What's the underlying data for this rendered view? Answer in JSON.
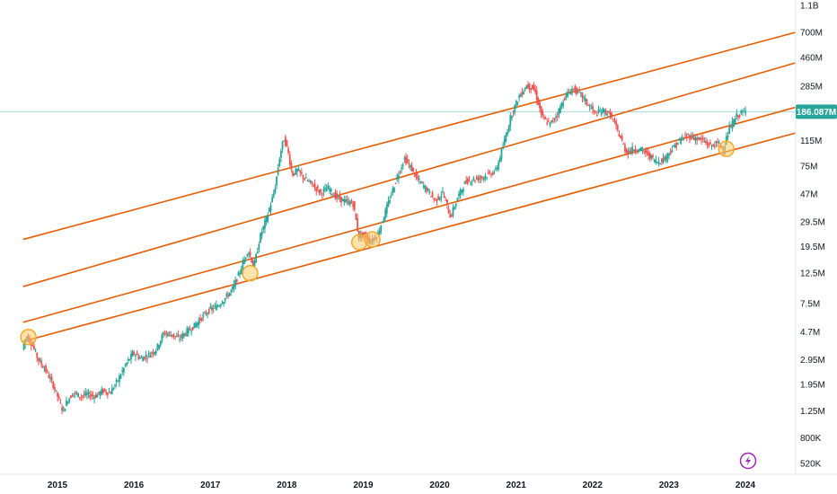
{
  "chart_data": {
    "type": "candlestick",
    "y_scale": "log",
    "y_ticks": [
      "1.1B",
      "700M",
      "460M",
      "285M",
      "115M",
      "75M",
      "47M",
      "29.5M",
      "19.5M",
      "12.5M",
      "7.5M",
      "4.7M",
      "2.95M",
      "1.95M",
      "1.25M",
      "800K",
      "520K"
    ],
    "y_tick_values": [
      1100000000,
      700000000,
      460000000,
      285000000,
      115000000,
      75000000,
      47000000,
      29500000,
      19500000,
      12500000,
      7500000,
      4700000,
      2950000,
      1950000,
      1250000,
      800000,
      520000
    ],
    "x_ticks": [
      "2015",
      "2016",
      "2017",
      "2018",
      "2019",
      "2020",
      "2021",
      "2022",
      "2023",
      "2024"
    ],
    "last_price_label": "186.087M",
    "last_price": 186087000,
    "colors": {
      "up": "#26a69a",
      "down": "#ef5350",
      "channel": "#e65c00",
      "marker_fill": "#ffcc66",
      "marker_stroke": "#f5a623",
      "price_line": "#26a69a",
      "price_label_bg": "#26a69a",
      "logo": "#9c27b0"
    },
    "price_path": [
      [
        2014.55,
        3500000
      ],
      [
        2014.6,
        4400000
      ],
      [
        2014.68,
        3800000
      ],
      [
        2014.75,
        3000000
      ],
      [
        2014.85,
        2500000
      ],
      [
        2014.95,
        1950000
      ],
      [
        2015.02,
        1550000
      ],
      [
        2015.08,
        1250000
      ],
      [
        2015.14,
        1500000
      ],
      [
        2015.22,
        1700000
      ],
      [
        2015.3,
        1600000
      ],
      [
        2015.4,
        1650000
      ],
      [
        2015.5,
        1600000
      ],
      [
        2015.6,
        1750000
      ],
      [
        2015.7,
        1700000
      ],
      [
        2015.8,
        2100000
      ],
      [
        2015.9,
        2700000
      ],
      [
        2016.0,
        3300000
      ],
      [
        2016.1,
        3000000
      ],
      [
        2016.2,
        3200000
      ],
      [
        2016.3,
        3500000
      ],
      [
        2016.4,
        4600000
      ],
      [
        2016.5,
        4500000
      ],
      [
        2016.6,
        4200000
      ],
      [
        2016.7,
        4700000
      ],
      [
        2016.8,
        5200000
      ],
      [
        2016.9,
        6000000
      ],
      [
        2017.0,
        6800000
      ],
      [
        2017.1,
        7200000
      ],
      [
        2017.2,
        8200000
      ],
      [
        2017.3,
        9600000
      ],
      [
        2017.4,
        13000000
      ],
      [
        2017.5,
        18500000
      ],
      [
        2017.58,
        14000000
      ],
      [
        2017.66,
        23000000
      ],
      [
        2017.75,
        32000000
      ],
      [
        2017.85,
        50000000
      ],
      [
        2017.92,
        90000000
      ],
      [
        2017.97,
        120000000
      ],
      [
        2018.02,
        100000000
      ],
      [
        2018.08,
        65000000
      ],
      [
        2018.15,
        70000000
      ],
      [
        2018.25,
        60000000
      ],
      [
        2018.35,
        55000000
      ],
      [
        2018.45,
        48000000
      ],
      [
        2018.55,
        52000000
      ],
      [
        2018.65,
        45000000
      ],
      [
        2018.75,
        42000000
      ],
      [
        2018.88,
        40000000
      ],
      [
        2018.95,
        23000000
      ],
      [
        2019.02,
        24000000
      ],
      [
        2019.1,
        21000000
      ],
      [
        2019.2,
        24000000
      ],
      [
        2019.3,
        35000000
      ],
      [
        2019.45,
        62000000
      ],
      [
        2019.55,
        85000000
      ],
      [
        2019.62,
        75000000
      ],
      [
        2019.72,
        60000000
      ],
      [
        2019.85,
        50000000
      ],
      [
        2019.95,
        42000000
      ],
      [
        2020.05,
        48000000
      ],
      [
        2020.15,
        32000000
      ],
      [
        2020.25,
        45000000
      ],
      [
        2020.35,
        58000000
      ],
      [
        2020.45,
        60000000
      ],
      [
        2020.55,
        62000000
      ],
      [
        2020.65,
        65000000
      ],
      [
        2020.75,
        70000000
      ],
      [
        2020.85,
        110000000
      ],
      [
        2020.95,
        180000000
      ],
      [
        2021.05,
        240000000
      ],
      [
        2021.15,
        290000000
      ],
      [
        2021.25,
        270000000
      ],
      [
        2021.35,
        170000000
      ],
      [
        2021.45,
        150000000
      ],
      [
        2021.55,
        180000000
      ],
      [
        2021.65,
        240000000
      ],
      [
        2021.75,
        275000000
      ],
      [
        2021.85,
        250000000
      ],
      [
        2021.95,
        210000000
      ],
      [
        2022.05,
        180000000
      ],
      [
        2022.15,
        190000000
      ],
      [
        2022.25,
        175000000
      ],
      [
        2022.35,
        130000000
      ],
      [
        2022.45,
        95000000
      ],
      [
        2022.55,
        100000000
      ],
      [
        2022.65,
        98000000
      ],
      [
        2022.75,
        90000000
      ],
      [
        2022.85,
        80000000
      ],
      [
        2022.95,
        85000000
      ],
      [
        2023.05,
        100000000
      ],
      [
        2023.15,
        115000000
      ],
      [
        2023.25,
        125000000
      ],
      [
        2023.35,
        120000000
      ],
      [
        2023.45,
        115000000
      ],
      [
        2023.55,
        105000000
      ],
      [
        2023.65,
        110000000
      ],
      [
        2023.72,
        100000000
      ],
      [
        2023.8,
        140000000
      ],
      [
        2023.9,
        175000000
      ],
      [
        2024.0,
        186000000
      ]
    ],
    "channel_lines": [
      {
        "x": [
          2014.55,
          2024.65
        ],
        "y": [
          22000000,
          700000000
        ]
      },
      {
        "x": [
          2014.55,
          2024.65
        ],
        "y": [
          10000000,
          420000000
        ]
      },
      {
        "x": [
          2014.55,
          2024.65
        ],
        "y": [
          5500000,
          200000000
        ]
      },
      {
        "x": [
          2014.55,
          2024.65
        ],
        "y": [
          4000000,
          130000000
        ]
      }
    ],
    "markers": [
      {
        "x": 2014.62,
        "y": 4300000
      },
      {
        "x": 2017.52,
        "y": 12500000
      },
      {
        "x": 2018.95,
        "y": 21000000
      },
      {
        "x": 2019.12,
        "y": 22000000
      },
      {
        "x": 2023.75,
        "y": 100000000
      }
    ]
  },
  "icons": {
    "logo": "lightning-icon"
  }
}
